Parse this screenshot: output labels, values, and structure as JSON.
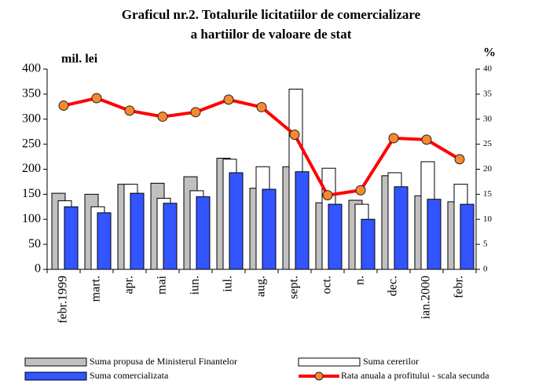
{
  "chart_data": {
    "type": "bar",
    "title": [
      "Graficul nr.2. Totalurile licitatiilor de comercializare",
      "a hartiilor de valoare de stat"
    ],
    "y_label": "mil. lei",
    "y2_label": "%",
    "categories": [
      "febr.1999",
      "mart.",
      "apr.",
      "mai",
      "iun.",
      "iul.",
      "aug.",
      "sept.",
      "oct.",
      "n.",
      "dec.",
      "ian.2000",
      "febr."
    ],
    "series": [
      {
        "name": "Suma propusa de Ministerul Finantelor",
        "type": "bar",
        "color": "#c0c0c0",
        "values": [
          152,
          150,
          170,
          172,
          185,
          222,
          162,
          205,
          133,
          138,
          187,
          147,
          135
        ]
      },
      {
        "name": "Suma cererilor",
        "type": "bar",
        "color": "#ffffff",
        "values": [
          137,
          125,
          170,
          142,
          157,
          220,
          205,
          360,
          202,
          130,
          193,
          215,
          170
        ]
      },
      {
        "name": "Suma comercializata",
        "type": "bar",
        "color": "#3355ff",
        "values": [
          125,
          113,
          152,
          132,
          145,
          193,
          160,
          195,
          130,
          100,
          165,
          140,
          130
        ]
      },
      {
        "name": "Rata anuala a profitului - scala secunda",
        "type": "line",
        "axis": "y2",
        "color": "#ff0000",
        "marker_color": "#f7882f",
        "values": [
          32.7,
          34.2,
          31.7,
          30.5,
          31.4,
          33.9,
          32.4,
          26.9,
          14.8,
          15.8,
          26.2,
          25.9,
          22
        ]
      }
    ],
    "ylim": [
      0,
      400
    ],
    "yticks": [
      0,
      50,
      100,
      150,
      200,
      250,
      300,
      350,
      400
    ],
    "y2lim": [
      0,
      40
    ],
    "y2ticks": [
      0,
      5,
      10,
      15,
      20,
      25,
      30,
      35,
      40
    ],
    "grid": false
  }
}
